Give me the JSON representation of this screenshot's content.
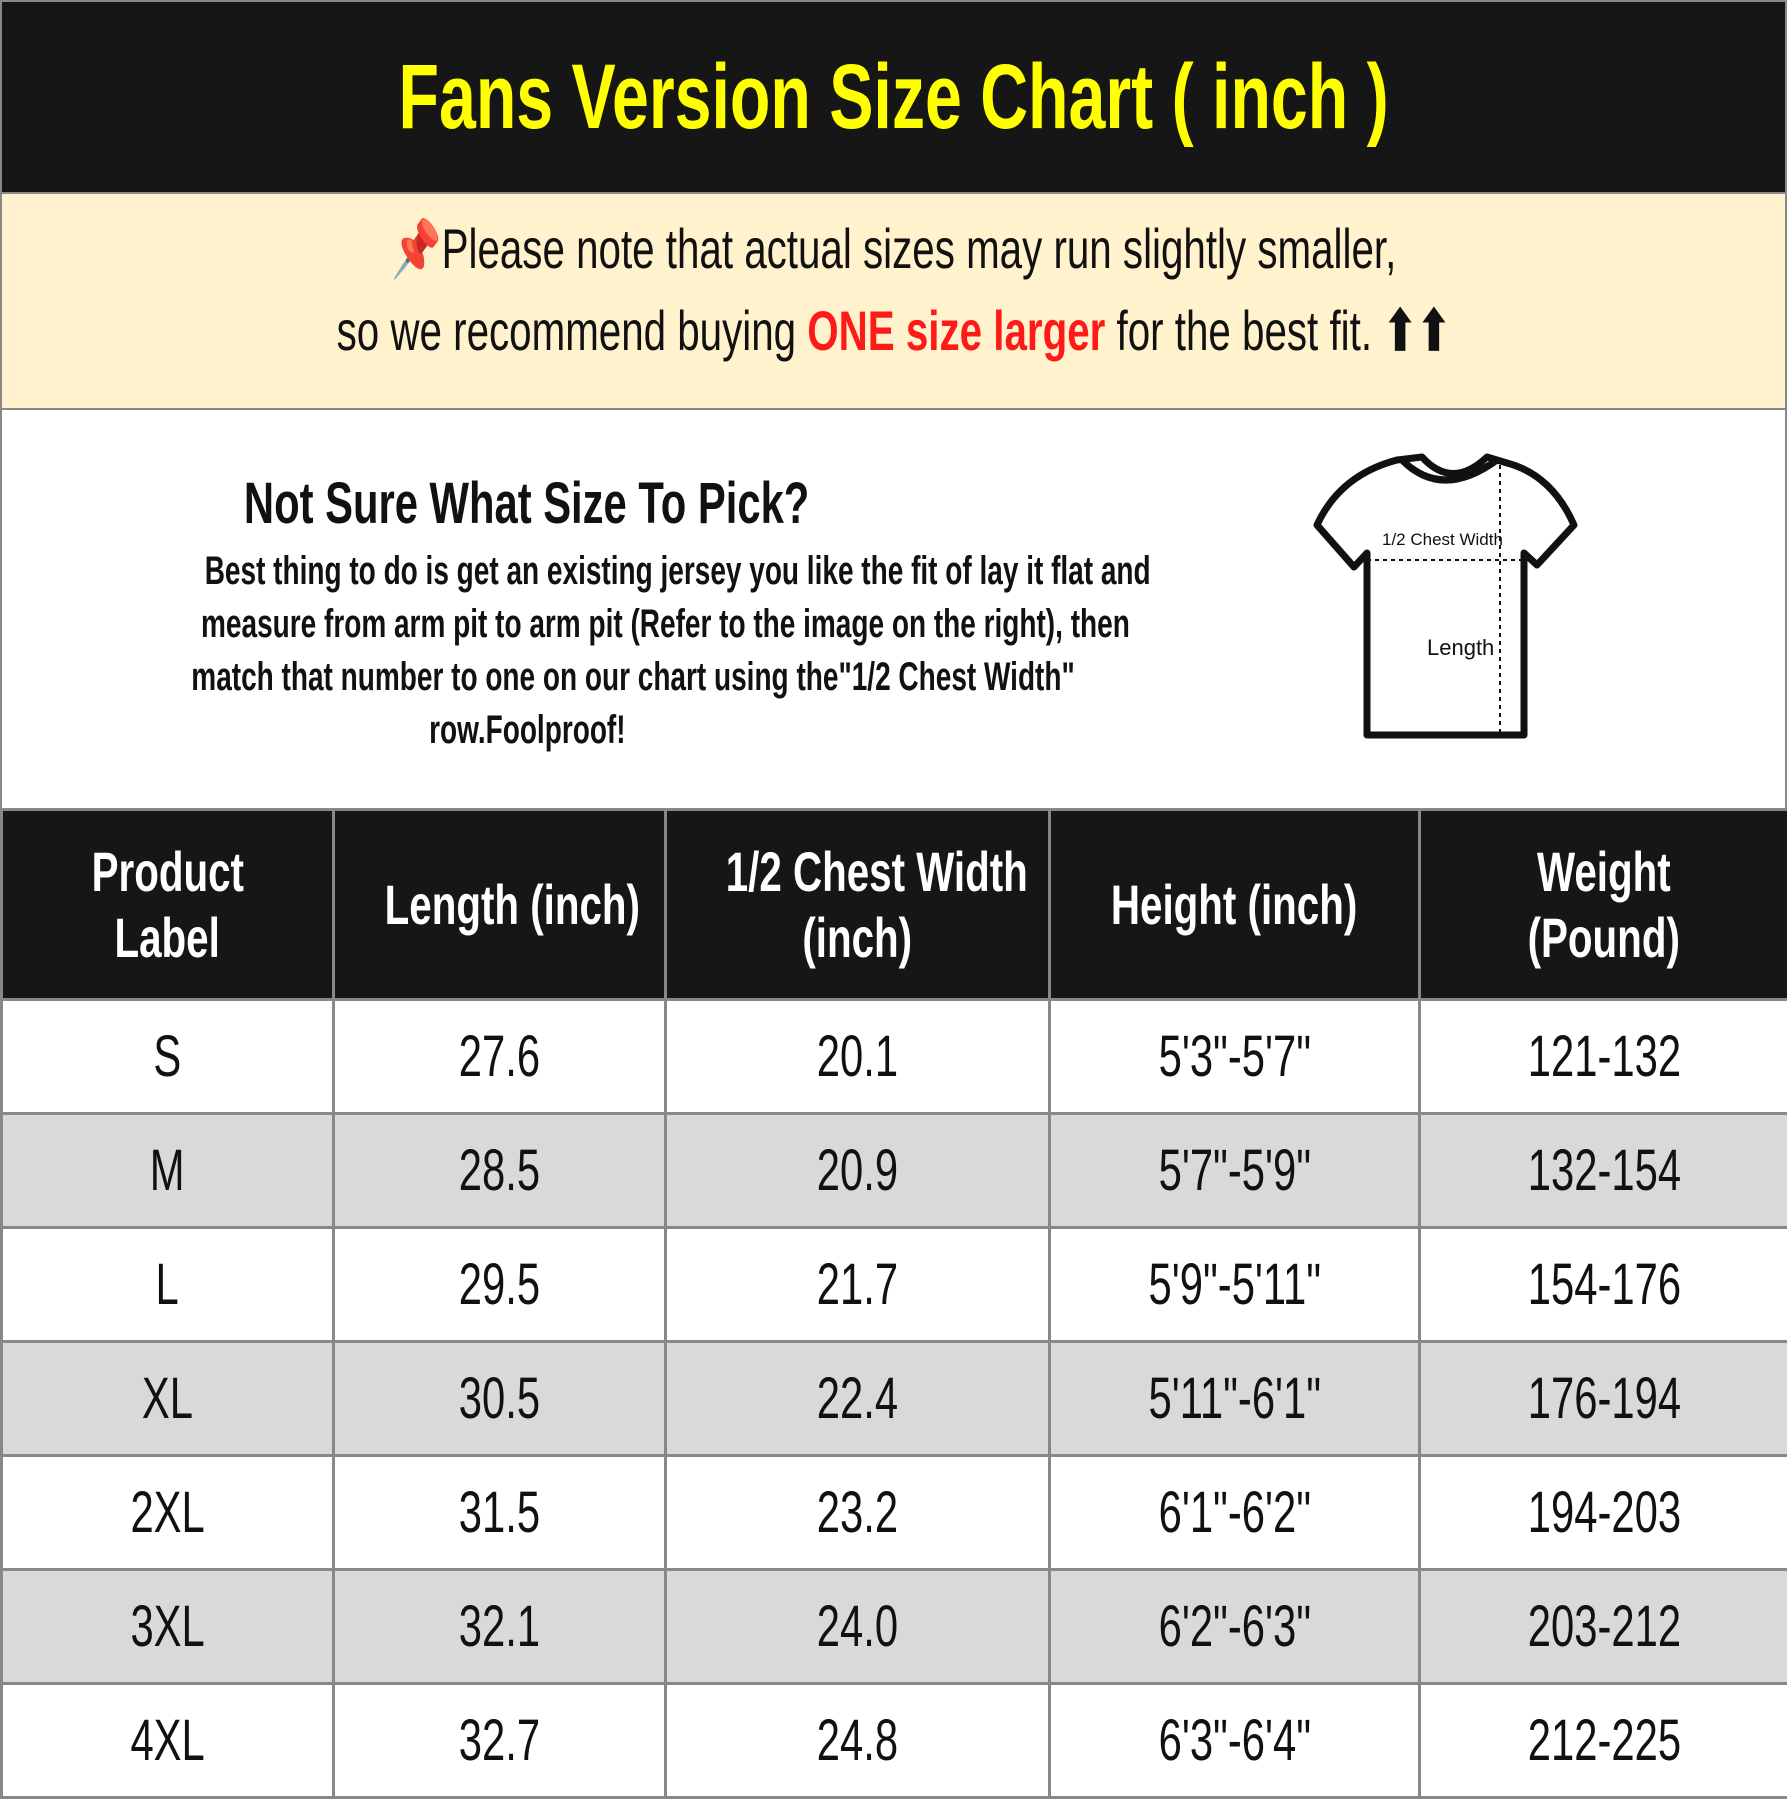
{
  "title": "Fans Version Size Chart ( inch )",
  "note": {
    "line1": "Please note that actual sizes may run slightly smaller,",
    "line2_pre": "so we recommend buying ",
    "line2_highlight": "ONE size larger",
    "line2_post": " for the best fit.",
    "arrows": "⬆⬆",
    "icon": "pushpin-icon",
    "highlight_color": "#ff1a1a"
  },
  "info": {
    "heading": "Not Sure What Size To Pick?",
    "lines": [
      "Best thing to do is get an existing jersey you like the fit of lay it flat and",
      "measure from arm pit to arm pit (Refer to the image on the right), then",
      "match that number to one on our chart using the\"1/2 Chest Width\"",
      "row.Foolproof!"
    ],
    "diagram": {
      "chest_label": "1/2 Chest Width",
      "length_label": "Length"
    }
  },
  "table": {
    "headers": [
      [
        "Product",
        "Label"
      ],
      [
        "Length (inch)"
      ],
      [
        "1/2 Chest Width",
        "(inch)"
      ],
      [
        "Height (inch)"
      ],
      [
        "Weight",
        "(Pound)"
      ]
    ],
    "rows": [
      [
        "S",
        "27.6",
        "20.1",
        "5'3\"-5'7\"",
        "121-132"
      ],
      [
        "M",
        "28.5",
        "20.9",
        "5'7\"-5'9\"",
        "132-154"
      ],
      [
        "L",
        "29.5",
        "21.7",
        "5'9\"-5'11\"",
        "154-176"
      ],
      [
        "XL",
        "30.5",
        "22.4",
        "5'11\"-6'1\"",
        "176-194"
      ],
      [
        "2XL",
        "31.5",
        "23.2",
        "6'1\"-6'2\"",
        "194-203"
      ],
      [
        "3XL",
        "32.1",
        "24.0",
        "6'2\"-6'3\"",
        "203-212"
      ],
      [
        "4XL",
        "32.7",
        "24.8",
        "6'3\"-6'4\"",
        "212-225"
      ]
    ]
  },
  "colors": {
    "title_bg": "#161616",
    "title_text": "#ffff00",
    "note_bg": "#fff2cc",
    "alt_row": "#d9d9d9"
  }
}
